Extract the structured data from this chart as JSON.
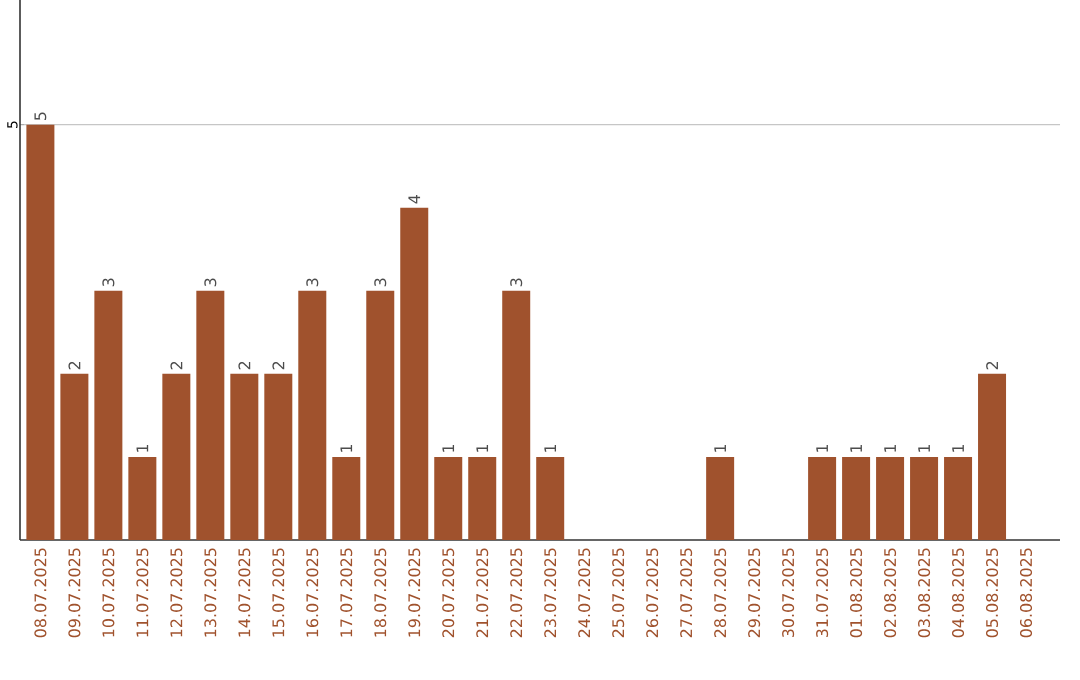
{
  "chart_data": {
    "type": "bar",
    "categories": [
      "08.07.2025",
      "09.07.2025",
      "10.07.2025",
      "11.07.2025",
      "12.07.2025",
      "13.07.2025",
      "14.07.2025",
      "15.07.2025",
      "16.07.2025",
      "17.07.2025",
      "18.07.2025",
      "19.07.2025",
      "20.07.2025",
      "21.07.2025",
      "22.07.2025",
      "23.07.2025",
      "24.07.2025",
      "25.07.2025",
      "26.07.2025",
      "27.07.2025",
      "28.07.2025",
      "29.07.2025",
      "30.07.2025",
      "31.07.2025",
      "01.08.2025",
      "02.08.2025",
      "03.08.2025",
      "04.08.2025",
      "05.08.2025",
      "06.08.2025"
    ],
    "values": [
      5,
      2,
      3,
      1,
      2,
      3,
      2,
      2,
      3,
      1,
      3,
      4,
      1,
      1,
      3,
      1,
      0,
      0,
      0,
      0,
      1,
      0,
      0,
      1,
      1,
      1,
      1,
      1,
      2,
      0
    ],
    "value_labels": [
      "5",
      "2",
      "3",
      "1",
      "2",
      "3",
      "2",
      "2",
      "3",
      "1",
      "3",
      "4",
      "1",
      "1",
      "3",
      "1",
      null,
      null,
      null,
      null,
      "1",
      null,
      null,
      "1",
      "1",
      "1",
      "1",
      "1",
      "2",
      null
    ],
    "color": "#a0522d",
    "ylim": [
      0,
      6.5
    ],
    "yticks": [
      5
    ],
    "grid": "y"
  }
}
